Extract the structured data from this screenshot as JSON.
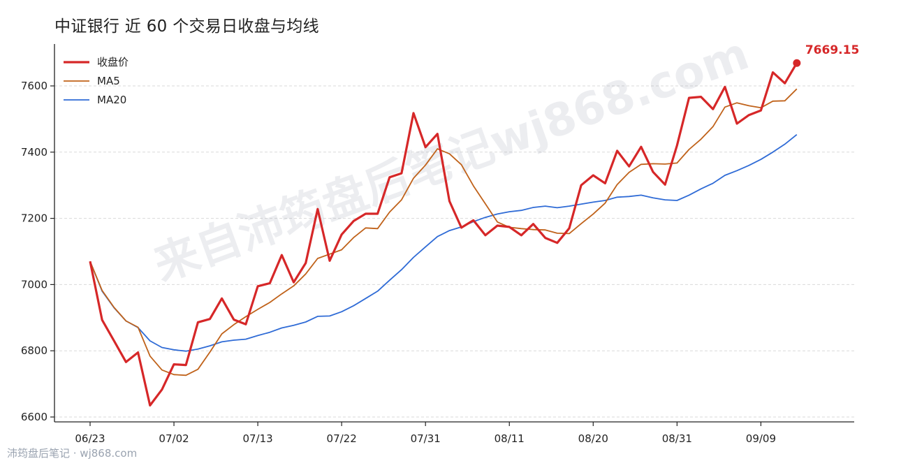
{
  "page": {
    "title": "中证银行 近 60 个交易日收盘与均线",
    "watermark": "来自沛筠盘后笔记wj868.com",
    "source": "沛筠盘后笔记 · wj868.com"
  },
  "chart_data": {
    "type": "line",
    "title": "中证银行 近 60 个交易日收盘与均线",
    "xlabel": "",
    "ylabel": "",
    "x_ticks": [
      "06/23",
      "07/02",
      "07/13",
      "07/22",
      "07/31",
      "08/11",
      "08/20",
      "08/31",
      "09/09"
    ],
    "y_ticks": [
      6600,
      6800,
      7000,
      7200,
      7400,
      7600
    ],
    "ylim": [
      6585,
      7725
    ],
    "grid": "horizontal dashed",
    "legend_position": "top-left",
    "last_value_label": "7669.15",
    "series": [
      {
        "name": "收盘价",
        "color": "#d62728",
        "values": [
          7070,
          6893,
          6830,
          6766,
          6795,
          6635,
          6683,
          6759,
          6757,
          6886,
          6896,
          6958,
          6894,
          6880,
          6995,
          7004,
          7089,
          7007,
          7065,
          7228,
          7072,
          7151,
          7192,
          7214,
          7214,
          7324,
          7336,
          7518,
          7415,
          7455,
          7252,
          7172,
          7194,
          7149,
          7178,
          7174,
          7149,
          7183,
          7141,
          7126,
          7170,
          7300,
          7330,
          7306,
          7404,
          7357,
          7416,
          7340,
          7302,
          7420,
          7564,
          7567,
          7530,
          7597,
          7486,
          7512,
          7526,
          7641,
          7608,
          7669.15
        ]
      },
      {
        "name": "MA5",
        "color": "#c0621a",
        "values": [
          7070,
          6982,
          6931,
          6890,
          6871,
          6784,
          6742,
          6728,
          6726,
          6744,
          6796,
          6851,
          6879,
          6903,
          6925,
          6946,
          6972,
          6996,
          7032,
          7079,
          7092,
          7105,
          7142,
          7171,
          7169,
          7219,
          7256,
          7321,
          7361,
          7410,
          7395,
          7362,
          7298,
          7244,
          7189,
          7173,
          7169,
          7166,
          7165,
          7155,
          7154,
          7184,
          7213,
          7246,
          7302,
          7339,
          7363,
          7365,
          7364,
          7367,
          7408,
          7439,
          7477,
          7536,
          7549,
          7540,
          7534,
          7554,
          7555,
          7591
        ]
      },
      {
        "name": "MA20",
        "color": "#2f6bd6",
        "values": [
          7070,
          6980,
          6930,
          6890,
          6870,
          6830,
          6810,
          6803,
          6799,
          6805,
          6815,
          6827,
          6832,
          6835,
          6846,
          6856,
          6869,
          6877,
          6887,
          6904,
          6905,
          6918,
          6936,
          6958,
          6980,
          7013,
          7045,
          7082,
          7114,
          7145,
          7163,
          7174,
          7190,
          7203,
          7213,
          7220,
          7224,
          7233,
          7237,
          7232,
          7237,
          7243,
          7249,
          7254,
          7264,
          7266,
          7270,
          7262,
          7256,
          7254,
          7270,
          7289,
          7306,
          7330,
          7344,
          7360,
          7378,
          7400,
          7424,
          7453
        ]
      }
    ]
  }
}
